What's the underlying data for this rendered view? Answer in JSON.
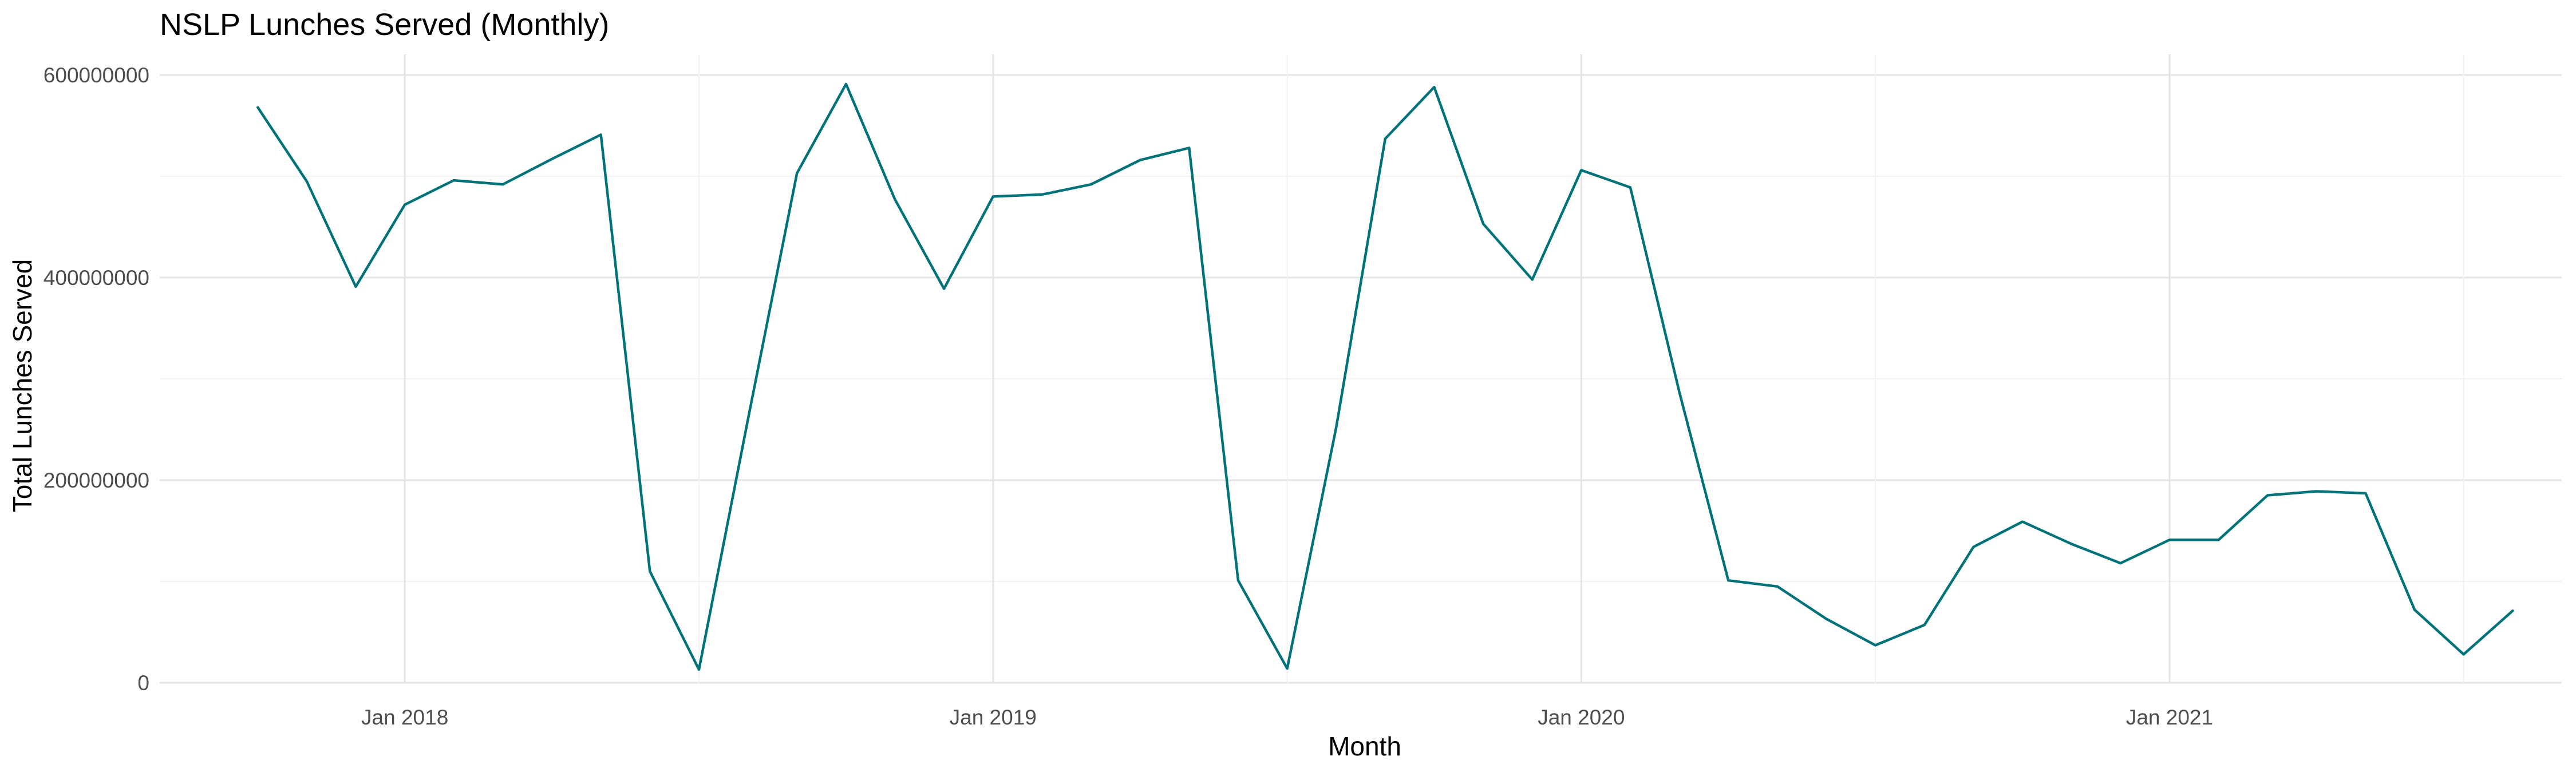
{
  "chart_data": {
    "type": "line",
    "title": "NSLP Lunches Served (Monthly)",
    "xlabel": "Month",
    "ylabel": "Total Lunches Served",
    "x_ticks": [
      "Jan 2018",
      "Jan 2019",
      "Jan 2020",
      "Jan 2021"
    ],
    "y_ticks": [
      "0",
      "200000000",
      "400000000",
      "600000000"
    ],
    "ylim": [
      0,
      600000000
    ],
    "xlim": [
      "2017-08",
      "2021-09"
    ],
    "grid": true,
    "series": [
      {
        "color": "#00727a",
        "x": [
          "2017-10",
          "2017-11",
          "2017-12",
          "2018-01",
          "2018-02",
          "2018-03",
          "2018-04",
          "2018-05",
          "2018-06",
          "2018-07",
          "2018-08",
          "2018-09",
          "2018-10",
          "2018-11",
          "2018-12",
          "2019-01",
          "2019-02",
          "2019-03",
          "2019-04",
          "2019-05",
          "2019-06",
          "2019-07",
          "2019-08",
          "2019-09",
          "2019-10",
          "2019-11",
          "2019-12",
          "2020-01",
          "2020-02",
          "2020-03",
          "2020-04",
          "2020-05",
          "2020-06",
          "2020-07",
          "2020-08",
          "2020-09",
          "2020-10",
          "2020-11",
          "2020-12",
          "2021-01",
          "2021-02",
          "2021-03",
          "2021-04",
          "2021-05",
          "2021-06",
          "2021-07",
          "2021-08"
        ],
        "values": [
          568000000,
          495000000,
          391000000,
          472000000,
          496000000,
          492000000,
          517000000,
          541000000,
          110000000,
          13000000,
          260000000,
          503000000,
          591000000,
          477000000,
          389000000,
          480000000,
          482000000,
          492000000,
          516000000,
          528000000,
          101000000,
          14000000,
          252000000,
          537000000,
          588000000,
          453000000,
          398000000,
          506000000,
          489000000,
          287000000,
          101000000,
          95000000,
          63000000,
          37000000,
          57000000,
          134000000,
          159000000,
          137000000,
          118000000,
          141000000,
          141000000,
          185000000,
          189000000,
          187000000,
          72000000,
          28000000,
          71000000
        ]
      }
    ]
  }
}
